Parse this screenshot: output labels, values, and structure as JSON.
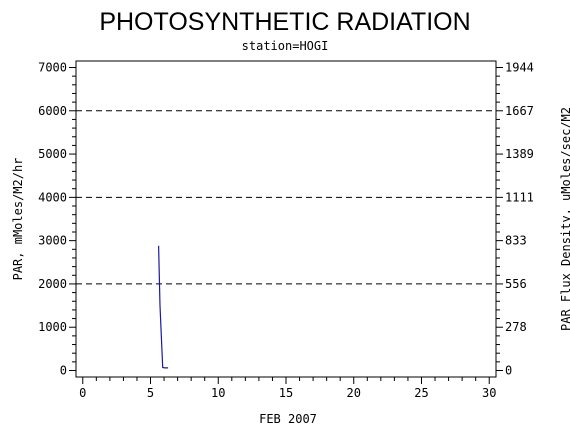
{
  "chart_data": {
    "type": "line",
    "title": "PHOTOSYNTHETIC RADIATION",
    "subtitle": "station=HOGI",
    "xlabel": "FEB 2007",
    "ylabel": "PAR, mMoles/M2/hr",
    "ylabel_right": "PAR Flux Density, uMoles/sec/M2",
    "xlim": [
      -0.5,
      30.5
    ],
    "ylim": [
      -150,
      7150
    ],
    "x_ticks": [
      "0",
      "5",
      "10",
      "15",
      "20",
      "25",
      "30"
    ],
    "y_ticks": [
      "0",
      "1000",
      "2000",
      "3000",
      "4000",
      "5000",
      "6000",
      "7000"
    ],
    "y_ticks_right": [
      "0",
      "278",
      "556",
      "833",
      "1111",
      "1389",
      "1667",
      "1944"
    ],
    "grid_dashed_y": [
      2000,
      4000,
      6000
    ],
    "series": [
      {
        "color": "#1a1aa0",
        "x": [
          5.6,
          5.7,
          5.9,
          6.05,
          6.2,
          6.3
        ],
        "y": [
          2880,
          1500,
          70,
          60,
          60,
          60
        ]
      }
    ]
  }
}
